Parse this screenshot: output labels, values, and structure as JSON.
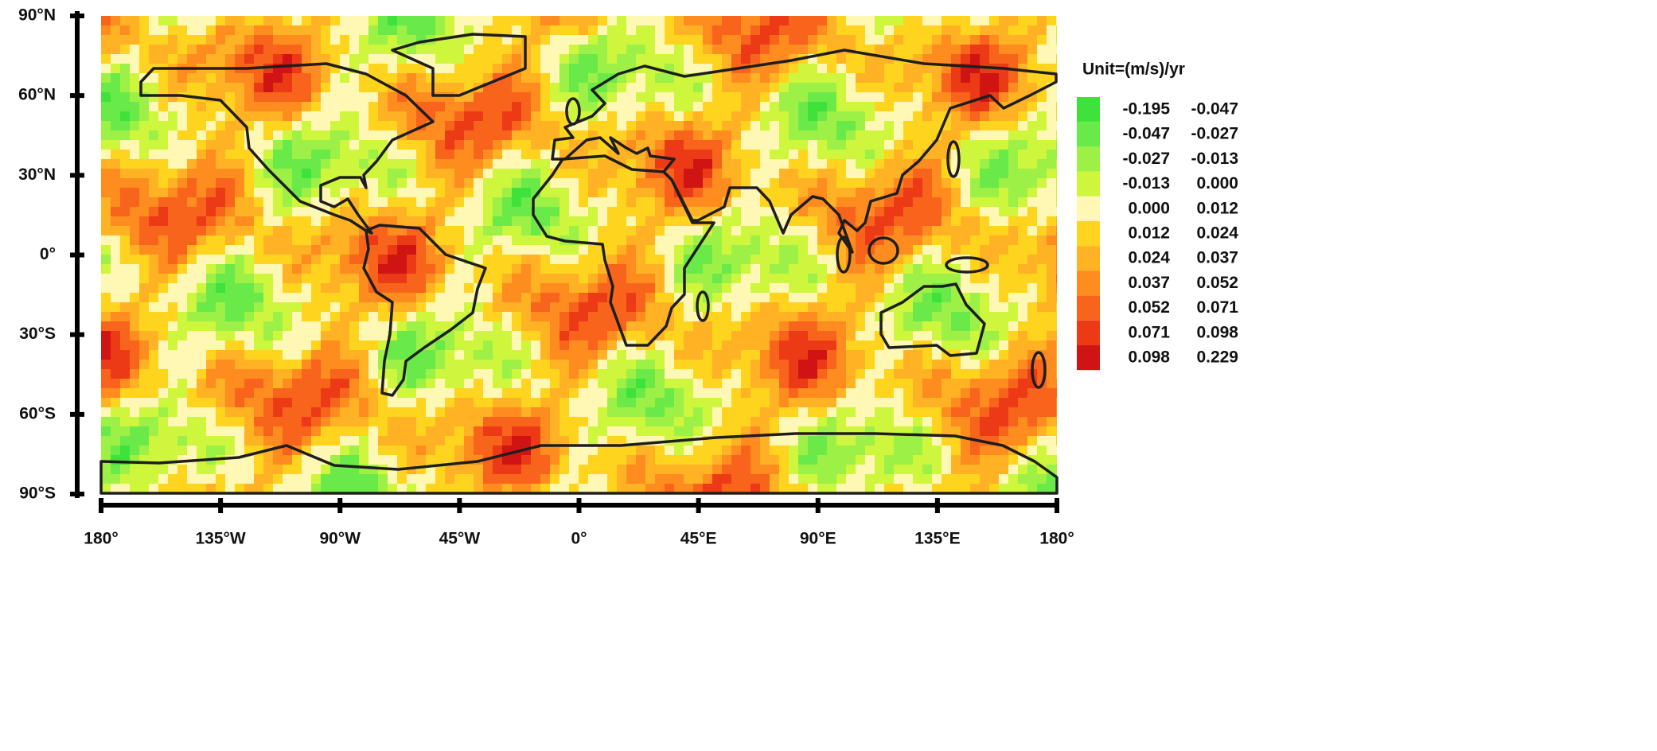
{
  "chart_data": {
    "type": "map",
    "xlim": [
      -180,
      180
    ],
    "ylim": [
      -90,
      90
    ],
    "xticks": [
      {
        "value": -180,
        "label": "180°"
      },
      {
        "value": -135,
        "label": "135°W"
      },
      {
        "value": -90,
        "label": "90°W"
      },
      {
        "value": -45,
        "label": "45°W"
      },
      {
        "value": 0,
        "label": "0°"
      },
      {
        "value": 45,
        "label": "45°E"
      },
      {
        "value": 90,
        "label": "90°E"
      },
      {
        "value": 135,
        "label": "135°E"
      },
      {
        "value": 180,
        "label": "180°"
      }
    ],
    "yticks": [
      {
        "value": 90,
        "label": "90°N"
      },
      {
        "value": 60,
        "label": "60°N"
      },
      {
        "value": 30,
        "label": "30°N"
      },
      {
        "value": 0,
        "label": "0°"
      },
      {
        "value": -30,
        "label": "30°S"
      },
      {
        "value": -60,
        "label": "60°S"
      },
      {
        "value": -90,
        "label": "90°S"
      }
    ],
    "legend": {
      "title": "Unit=(m/s)/yr",
      "breaks": [
        -0.195,
        -0.047,
        -0.027,
        -0.013,
        {
          "value": 0,
          "label": "0.000"
        },
        0.012,
        0.024,
        0.037,
        0.052,
        0.071,
        0.098,
        0.229
      ],
      "colors": [
        "#3fe23a",
        "#6aea48",
        "#9df046",
        "#cdf63c",
        "#fff7b4",
        "#ffd41e",
        "#ffb224",
        "#ff8c1e",
        "#f8641c",
        "#ec3a16",
        "#d01414"
      ]
    }
  }
}
